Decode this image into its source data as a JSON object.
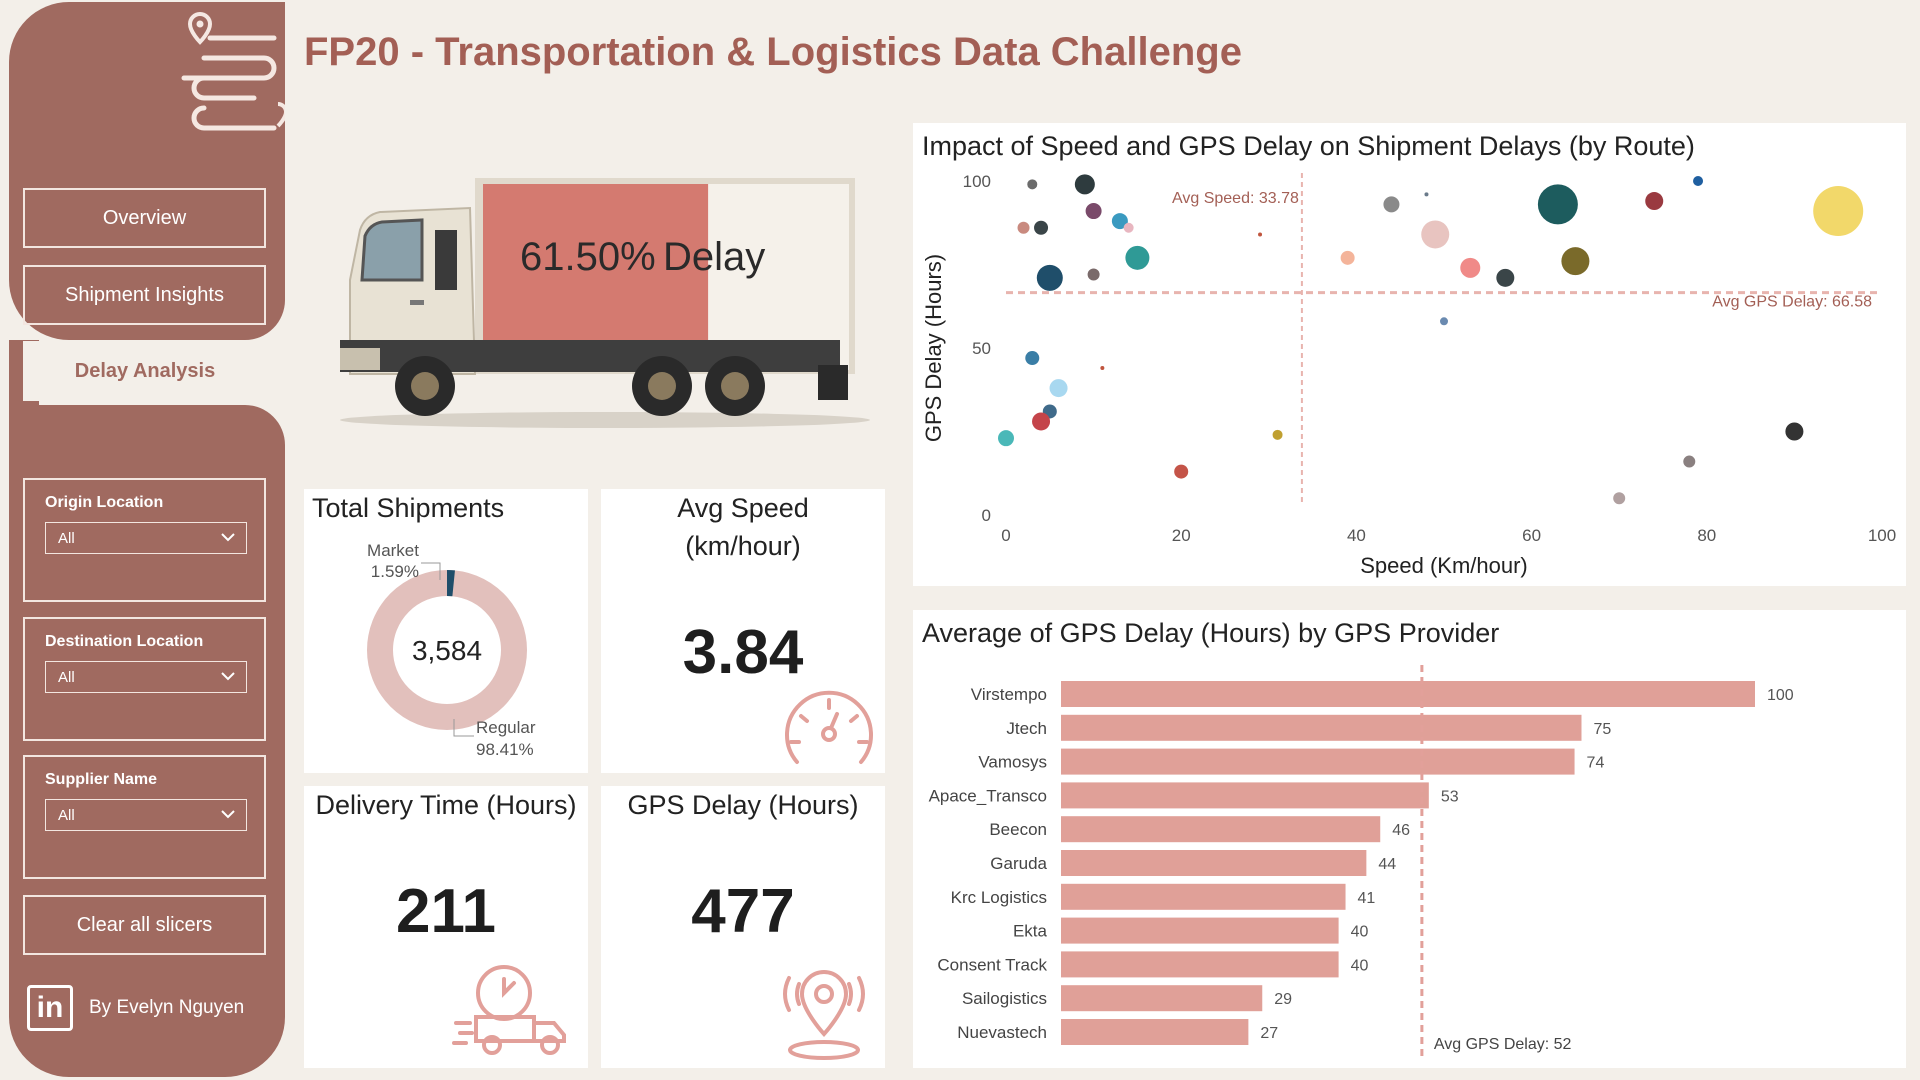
{
  "title": "FP20 - Transportation & Logistics Data Challenge",
  "nav": {
    "overview": "Overview",
    "shipment_insights": "Shipment Insights",
    "delay_analysis": "Delay Analysis"
  },
  "slicers": {
    "origin": {
      "label": "Origin Location",
      "value": "All"
    },
    "destination": {
      "label": "Destination Location",
      "value": "All"
    },
    "supplier": {
      "label": "Supplier Name",
      "value": "All"
    }
  },
  "clear_label": "Clear all slicers",
  "author": "By Evelyn Nguyen",
  "truck": {
    "delay_pct": "61.50%",
    "delay_label": "Delay",
    "fill_fraction": 0.615
  },
  "kpis": {
    "total_shipments": {
      "title": "Total Shipments",
      "value": "3,584",
      "market_label": "Market",
      "market_pct": "1.59%",
      "regular_label": "Regular",
      "regular_pct": "98.41%"
    },
    "avg_speed": {
      "title_line1": "Avg Speed",
      "title_line2": "(km/hour)",
      "value": "3.84"
    },
    "delivery_time": {
      "title": "Delivery Time (Hours)",
      "value": "211"
    },
    "gps_delay": {
      "title": "GPS Delay (Hours)",
      "value": "477"
    }
  },
  "chart_data": [
    {
      "type": "scatter",
      "title": "Impact of Speed and GPS Delay on Shipment Delays (by Route)",
      "xlabel": "Speed (Km/hour)",
      "ylabel": "GPS Delay (Hours)",
      "xlim": [
        0,
        100
      ],
      "ylim": [
        0,
        100
      ],
      "xticks": [
        "0",
        "20",
        "40",
        "60",
        "80",
        "100"
      ],
      "yticks": [
        "0",
        "50",
        "100"
      ],
      "ref_lines": {
        "x_label": "Avg Speed: 33.78",
        "x_value": 33.78,
        "y_label": "Avg GPS Delay: 66.58",
        "y_value": 66.58
      },
      "points": [
        {
          "x": 3,
          "y": 99,
          "r": 5,
          "color": "#6b6b6b"
        },
        {
          "x": 9,
          "y": 99,
          "r": 10,
          "color": "#2e3b3e"
        },
        {
          "x": 2,
          "y": 86,
          "r": 6,
          "color": "#c98a7f"
        },
        {
          "x": 4,
          "y": 86,
          "r": 7,
          "color": "#3a4548"
        },
        {
          "x": 10,
          "y": 91,
          "r": 8,
          "color": "#7a4a6a"
        },
        {
          "x": 13,
          "y": 88,
          "r": 8,
          "color": "#3a9ac0"
        },
        {
          "x": 14,
          "y": 86,
          "r": 5,
          "color": "#e8b6c0"
        },
        {
          "x": 5,
          "y": 71,
          "r": 13,
          "color": "#1f4e6a"
        },
        {
          "x": 10,
          "y": 72,
          "r": 6,
          "color": "#7a6a6a"
        },
        {
          "x": 15,
          "y": 77,
          "r": 12,
          "color": "#2f9a96"
        },
        {
          "x": 29,
          "y": 84,
          "r": 2,
          "color": "#c0553e"
        },
        {
          "x": 44,
          "y": 93,
          "r": 8,
          "color": "#8a8a8a"
        },
        {
          "x": 48,
          "y": 96,
          "r": 2,
          "color": "#6a7a8a"
        },
        {
          "x": 49,
          "y": 84,
          "r": 14,
          "color": "#e8c4c0"
        },
        {
          "x": 39,
          "y": 77,
          "r": 7,
          "color": "#f4b49a"
        },
        {
          "x": 53,
          "y": 74,
          "r": 10,
          "color": "#f08a88"
        },
        {
          "x": 57,
          "y": 71,
          "r": 9,
          "color": "#3a4548"
        },
        {
          "x": 63,
          "y": 93,
          "r": 20,
          "color": "#1d5c5e"
        },
        {
          "x": 65,
          "y": 76,
          "r": 14,
          "color": "#7a6a2a"
        },
        {
          "x": 74,
          "y": 94,
          "r": 9,
          "color": "#9a3a40"
        },
        {
          "x": 79,
          "y": 100,
          "r": 5,
          "color": "#1f5fa0"
        },
        {
          "x": 95,
          "y": 91,
          "r": 25,
          "color": "#f2d86a"
        },
        {
          "x": 3,
          "y": 47,
          "r": 7,
          "color": "#3a7ea6"
        },
        {
          "x": 11,
          "y": 44,
          "r": 2,
          "color": "#c0553e"
        },
        {
          "x": 6,
          "y": 38,
          "r": 9,
          "color": "#a8d8f0"
        },
        {
          "x": 5,
          "y": 31,
          "r": 7,
          "color": "#3f6a8a"
        },
        {
          "x": 4,
          "y": 28,
          "r": 9,
          "color": "#c4444a"
        },
        {
          "x": 0,
          "y": 23,
          "r": 8,
          "color": "#4ab8b8"
        },
        {
          "x": 50,
          "y": 58,
          "r": 4,
          "color": "#6a8ab0"
        },
        {
          "x": 31,
          "y": 24,
          "r": 5,
          "color": "#c0a030"
        },
        {
          "x": 20,
          "y": 13,
          "r": 7,
          "color": "#c45448"
        },
        {
          "x": 90,
          "y": 25,
          "r": 9,
          "color": "#333333"
        },
        {
          "x": 78,
          "y": 16,
          "r": 6,
          "color": "#8a8080"
        },
        {
          "x": 70,
          "y": 5,
          "r": 6,
          "color": "#b0a0a0"
        }
      ]
    },
    {
      "type": "bar",
      "orientation": "horizontal",
      "title": "Average of GPS Delay (Hours) by GPS Provider",
      "categories": [
        "Virstempo",
        "Jtech",
        "Vamosys",
        "Apace_Transco",
        "Beecon",
        "Garuda",
        "Krc Logistics",
        "Ekta",
        "Consent Track",
        "Sailogistics",
        "Nuevastech"
      ],
      "values": [
        100,
        75,
        74,
        53,
        46,
        44,
        41,
        40,
        40,
        29,
        27
      ],
      "xlim": [
        0,
        100
      ],
      "ref_line": {
        "label": "Avg GPS Delay: 52",
        "value": 52
      },
      "color": "#e0a098"
    }
  ],
  "colors": {
    "brand": "#a06a60",
    "title": "#a35f55",
    "bar": "#e0a098",
    "delay_fill": "#d47a70",
    "ref_line": "#e2a09a",
    "donut_regular": "#e2c0bc",
    "donut_market": "#1f4e6a"
  }
}
